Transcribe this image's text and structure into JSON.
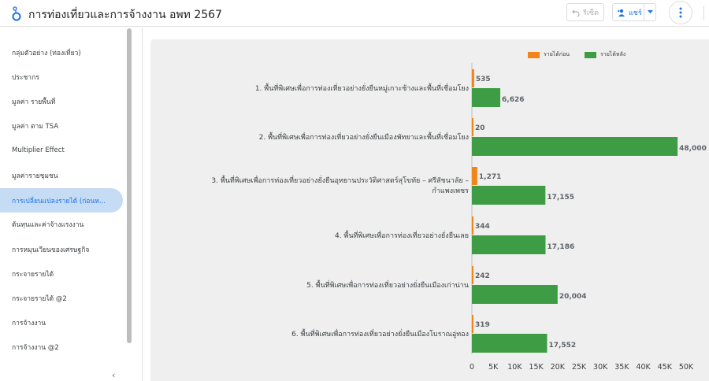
{
  "header": {
    "title": "การท่องเที่ยวและการจ้างงาน อพท 2567",
    "reset_label": "รีเซ็ต",
    "share_label": "แชร์",
    "logo_icon": "looker-studio-logo-icon",
    "more_icon": "more-vert-icon"
  },
  "sidebar": {
    "items": [
      {
        "label": "กลุ่มตัวอย่าง (ท่องเที่ยว)"
      },
      {
        "label": "ประชากร"
      },
      {
        "label": "มูลค่า รายพื้นที่"
      },
      {
        "label": "มูลค่า ตาม TSA"
      },
      {
        "label": "Multiplier Effect"
      },
      {
        "label": "มูลค่ารายชุมชน"
      },
      {
        "label": "การเปลี่ยนแปลงรายได้ (ก่อนห..."
      },
      {
        "label": "ต้นทุนและค่าจ้างแรงงาน"
      },
      {
        "label": "การหมุนเวียนของเศรษฐกิจ"
      },
      {
        "label": "กระจายรายได้"
      },
      {
        "label": "กระจายรายได้ @2"
      },
      {
        "label": "การจ้างงาน"
      },
      {
        "label": "การจ้างงาน @2"
      }
    ],
    "active_index": 6,
    "collapse_label": "‹"
  },
  "colors": {
    "before": "#f0861a",
    "after": "#3e9c44",
    "active_bg": "#c6dcf5",
    "accent": "#1a73e8"
  },
  "chart_data": {
    "type": "bar",
    "orientation": "horizontal",
    "categories": [
      "1. พื้นที่พิเศษเพื่อการท่องเที่ยวอย่างยั่งยืนหมู่เกาะช้างและพื้นที่เชื่อมโยง",
      "2. พื้นที่พิเศษเพื่อการท่องเที่ยวอย่างยั่งยืนเมืองพัทยาและพื้นที่เชื่อมโยง",
      "3. พื้นที่พิเศษเพื่อการท่องเที่ยวอย่างยั่งยืนอุทยานประวัติศาสตร์สุโขทัย – ศรีสัชนาลัย – กำแพงเพชร",
      "4. พื้นที่พิเศษเพื่อการท่องเที่ยวอย่างยั่งยืนเลย",
      "5. พื้นที่พิเศษเพื่อการท่องเที่ยวอย่างยั่งยืนเมืองเก่าน่าน",
      "6. พื้นที่พิเศษเพื่อการท่องเที่ยวอย่างยั่งยืนเมืองโบราณอู่ทอง"
    ],
    "series": [
      {
        "name": "รายได้ก่อน",
        "values": [
          535,
          20,
          1271,
          344,
          242,
          319
        ]
      },
      {
        "name": "รายได้หลัง",
        "values": [
          6626,
          48000,
          17155,
          17186,
          20004,
          17552
        ]
      }
    ],
    "value_labels": [
      [
        "535",
        "20",
        "1,271",
        "344",
        "242",
        "319"
      ],
      [
        "6,626",
        "48,000",
        "17,155",
        "17,186",
        "20,004",
        "17,552"
      ]
    ],
    "xlim": [
      0,
      50000
    ],
    "xticks": [
      "0",
      "5K",
      "10K",
      "15K",
      "20K",
      "25K",
      "30K",
      "35K",
      "40K",
      "45K",
      "50K"
    ],
    "legend_position": "top-right",
    "grid": false
  }
}
